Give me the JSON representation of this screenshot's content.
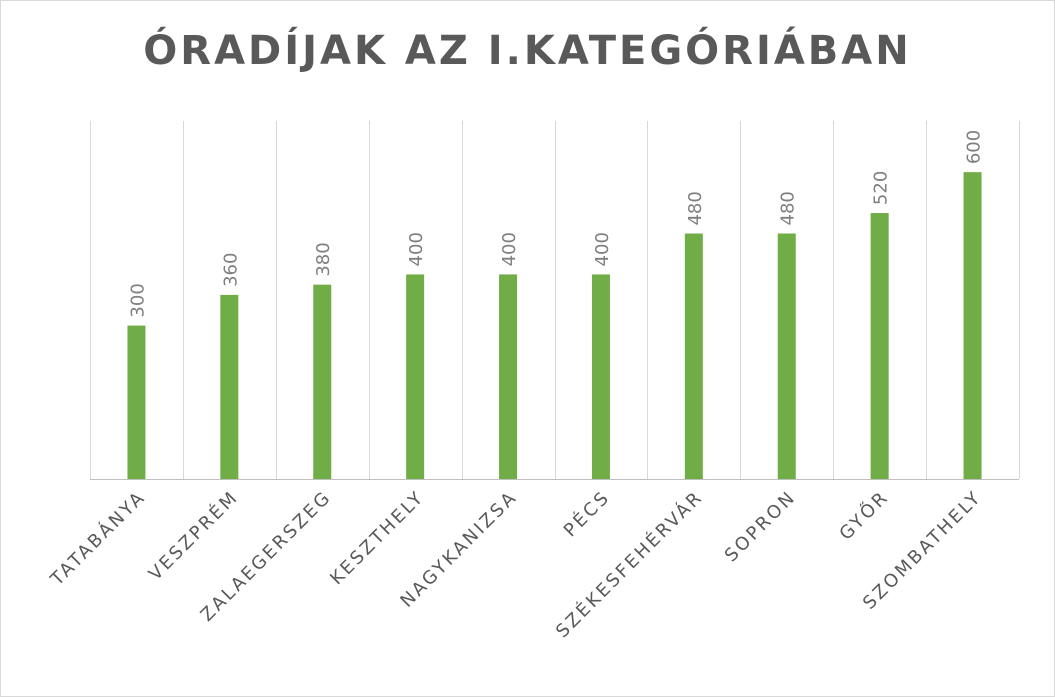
{
  "chart_data": {
    "type": "bar",
    "title": "ÓRADÍJAK AZ I.KATEGÓRIÁBAN",
    "xlabel": "",
    "ylabel": "",
    "categories": [
      "TATABÁNYA",
      "VESZPRÉM",
      "ZALAEGERSZEG",
      "KESZTHELY",
      "NAGYKANIZSA",
      "PÉCS",
      "SZÉKESFEHÉRVÁR",
      "SOPRON",
      "GYŐR",
      "SZOMBATHELY"
    ],
    "series": [
      {
        "values": [
          300,
          360,
          380,
          400,
          400,
          400,
          480,
          480,
          520,
          600
        ]
      }
    ],
    "ylim": [
      0,
      700
    ],
    "data_labels": true,
    "grid": "vertical category separators",
    "legend": "none"
  },
  "colors": {
    "bar": "#70ad47",
    "grid": "#d9d9d9",
    "axis": "#bfbfbf",
    "text": "#595959",
    "label": "#7f7f7f"
  }
}
